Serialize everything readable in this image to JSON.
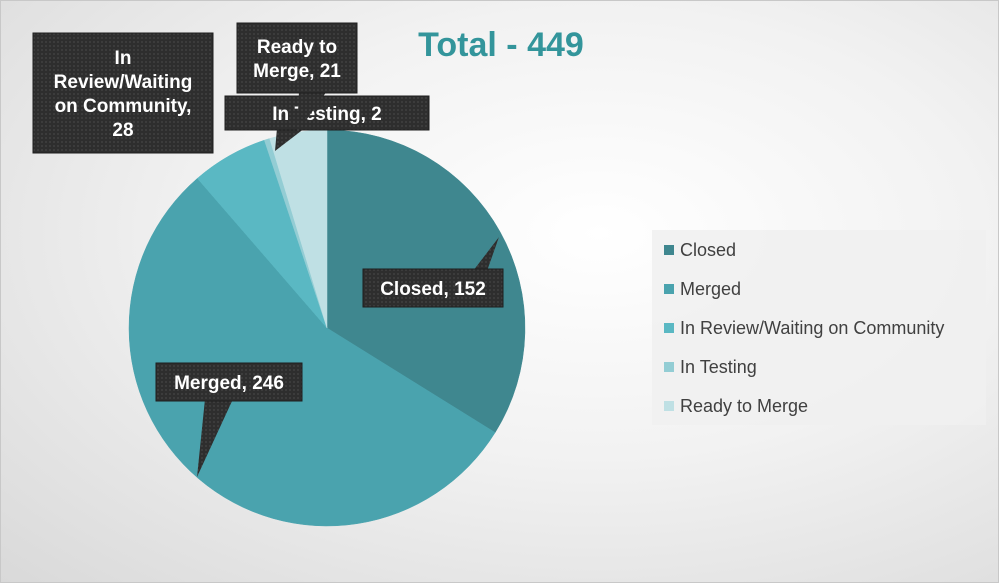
{
  "chart_data": {
    "type": "pie",
    "title": "Total - 449",
    "title_color": "#33959b",
    "categories": [
      "Closed",
      "Merged",
      "In Review/Waiting on Community",
      "In Testing",
      "Ready to Merge"
    ],
    "values": [
      152,
      246,
      28,
      2,
      21
    ],
    "colors": [
      "#3f878f",
      "#4aa3ae",
      "#5ab8c3",
      "#93cdd4",
      "#bfe0e4"
    ],
    "data_labels": [
      [
        "Closed, 152"
      ],
      [
        "Merged, 246"
      ],
      [
        "In",
        "Review/Waiting",
        "on Community,",
        "28"
      ],
      [
        "In Testing, 2"
      ],
      [
        "Ready to",
        "Merge, 21"
      ]
    ],
    "legend_position": "right",
    "grid": false
  }
}
